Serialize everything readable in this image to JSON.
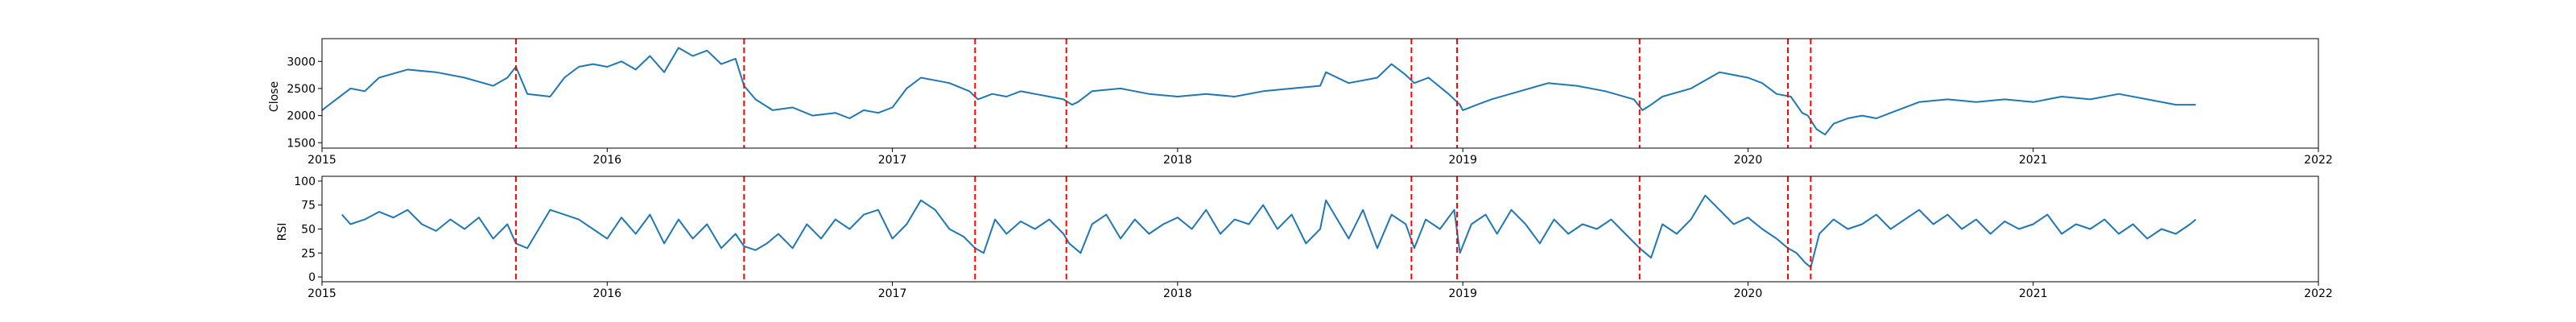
{
  "colors": {
    "line": "#1f77b4",
    "marker": "#ff0000",
    "axis": "#000000",
    "background": "#ffffff"
  },
  "chart_data": [
    {
      "type": "line",
      "ylabel": "Close",
      "xlim": [
        2015.0,
        2022.0
      ],
      "ylim": [
        1400,
        3420
      ],
      "x_ticks": [
        "2015",
        "2016",
        "2017",
        "2018",
        "2019",
        "2020",
        "2021",
        "2022"
      ],
      "y_ticks": [
        1500,
        2000,
        2500,
        3000
      ],
      "grid": false,
      "series": [
        {
          "x": [
            2015.0,
            2015.05,
            2015.1,
            2015.15,
            2015.2,
            2015.3,
            2015.4,
            2015.5,
            2015.6,
            2015.65,
            2015.68,
            2015.72,
            2015.8,
            2015.85,
            2015.9,
            2015.95,
            2016.0,
            2016.05,
            2016.1,
            2016.15,
            2016.2,
            2016.25,
            2016.3,
            2016.35,
            2016.4,
            2016.45,
            2016.48,
            2016.52,
            2016.58,
            2016.65,
            2016.72,
            2016.8,
            2016.85,
            2016.9,
            2016.95,
            2017.0,
            2017.05,
            2017.1,
            2017.15,
            2017.2,
            2017.27,
            2017.3,
            2017.35,
            2017.4,
            2017.45,
            2017.5,
            2017.55,
            2017.6,
            2017.63,
            2017.65,
            2017.7,
            2017.8,
            2017.9,
            2018.0,
            2018.1,
            2018.2,
            2018.3,
            2018.4,
            2018.5,
            2018.52,
            2018.6,
            2018.7,
            2018.75,
            2018.8,
            2018.83,
            2018.88,
            2018.95,
            2018.99,
            2019.0,
            2019.05,
            2019.1,
            2019.2,
            2019.3,
            2019.4,
            2019.5,
            2019.6,
            2019.63,
            2019.66,
            2019.7,
            2019.8,
            2019.9,
            2019.95,
            2020.0,
            2020.05,
            2020.1,
            2020.15,
            2020.19,
            2020.21,
            2020.24,
            2020.27,
            2020.3,
            2020.35,
            2020.4,
            2020.45,
            2020.5,
            2020.6,
            2020.7,
            2020.8,
            2020.9,
            2021.0,
            2021.1,
            2021.2,
            2021.3,
            2021.4,
            2021.5,
            2021.57
          ],
          "values": [
            2100,
            2300,
            2500,
            2450,
            2700,
            2850,
            2800,
            2700,
            2550,
            2700,
            2900,
            2400,
            2350,
            2700,
            2900,
            2950,
            2900,
            3000,
            2850,
            3100,
            2800,
            3250,
            3100,
            3200,
            2950,
            3050,
            2550,
            2300,
            2100,
            2150,
            2000,
            2050,
            1950,
            2100,
            2050,
            2150,
            2500,
            2700,
            2650,
            2600,
            2450,
            2300,
            2400,
            2350,
            2450,
            2400,
            2350,
            2300,
            2200,
            2250,
            2450,
            2500,
            2400,
            2350,
            2400,
            2350,
            2450,
            2500,
            2550,
            2800,
            2600,
            2700,
            2950,
            2750,
            2600,
            2700,
            2400,
            2200,
            2100,
            2200,
            2300,
            2450,
            2600,
            2550,
            2450,
            2300,
            2100,
            2200,
            2350,
            2500,
            2800,
            2750,
            2700,
            2600,
            2400,
            2350,
            2050,
            2000,
            1750,
            1650,
            1850,
            1950,
            2000,
            1950,
            2050,
            2250,
            2300,
            2250,
            2300,
            2250,
            2350,
            2300,
            2400,
            2300,
            2200,
            2200
          ]
        }
      ],
      "vlines": [
        2015.68,
        2016.48,
        2017.29,
        2017.61,
        2018.82,
        2018.98,
        2019.62,
        2020.14,
        2020.22
      ]
    },
    {
      "type": "line",
      "ylabel": "RSI",
      "xlim": [
        2015.0,
        2022.0
      ],
      "ylim": [
        -5,
        105
      ],
      "x_ticks": [
        "2015",
        "2016",
        "2017",
        "2018",
        "2019",
        "2020",
        "2021",
        "2022"
      ],
      "y_ticks": [
        0,
        25,
        50,
        75,
        100
      ],
      "grid": false,
      "series": [
        {
          "x": [
            2015.07,
            2015.1,
            2015.15,
            2015.2,
            2015.25,
            2015.3,
            2015.35,
            2015.4,
            2015.45,
            2015.5,
            2015.55,
            2015.6,
            2015.65,
            2015.68,
            2015.72,
            2015.75,
            2015.8,
            2015.85,
            2015.9,
            2015.95,
            2016.0,
            2016.05,
            2016.1,
            2016.15,
            2016.2,
            2016.25,
            2016.3,
            2016.35,
            2016.4,
            2016.45,
            2016.48,
            2016.52,
            2016.56,
            2016.6,
            2016.65,
            2016.7,
            2016.75,
            2016.8,
            2016.85,
            2016.9,
            2016.95,
            2017.0,
            2017.05,
            2017.1,
            2017.15,
            2017.2,
            2017.25,
            2017.29,
            2017.32,
            2017.36,
            2017.4,
            2017.45,
            2017.5,
            2017.55,
            2017.6,
            2017.62,
            2017.66,
            2017.7,
            2017.75,
            2017.8,
            2017.85,
            2017.9,
            2017.95,
            2018.0,
            2018.05,
            2018.1,
            2018.15,
            2018.2,
            2018.25,
            2018.3,
            2018.35,
            2018.4,
            2018.45,
            2018.5,
            2018.52,
            2018.56,
            2018.6,
            2018.65,
            2018.7,
            2018.75,
            2018.8,
            2018.83,
            2018.87,
            2018.92,
            2018.97,
            2018.99,
            2019.03,
            2019.08,
            2019.12,
            2019.17,
            2019.22,
            2019.27,
            2019.32,
            2019.37,
            2019.42,
            2019.47,
            2019.52,
            2019.57,
            2019.62,
            2019.66,
            2019.7,
            2019.75,
            2019.8,
            2019.85,
            2019.9,
            2019.95,
            2020.0,
            2020.05,
            2020.1,
            2020.14,
            2020.17,
            2020.2,
            2020.22,
            2020.25,
            2020.3,
            2020.35,
            2020.4,
            2020.45,
            2020.5,
            2020.55,
            2020.6,
            2020.65,
            2020.7,
            2020.75,
            2020.8,
            2020.85,
            2020.9,
            2020.95,
            2021.0,
            2021.05,
            2021.1,
            2021.15,
            2021.2,
            2021.25,
            2021.3,
            2021.35,
            2021.4,
            2021.45,
            2021.5,
            2021.55,
            2021.57
          ],
          "values": [
            65,
            55,
            60,
            68,
            62,
            70,
            55,
            48,
            60,
            50,
            62,
            40,
            55,
            35,
            30,
            45,
            70,
            65,
            60,
            50,
            40,
            62,
            45,
            65,
            35,
            60,
            40,
            55,
            30,
            45,
            32,
            28,
            35,
            45,
            30,
            55,
            40,
            60,
            50,
            65,
            70,
            40,
            55,
            80,
            70,
            50,
            42,
            30,
            25,
            60,
            45,
            58,
            50,
            60,
            45,
            35,
            25,
            55,
            65,
            40,
            60,
            45,
            55,
            62,
            50,
            70,
            45,
            60,
            55,
            75,
            50,
            65,
            35,
            50,
            80,
            60,
            40,
            70,
            30,
            65,
            55,
            30,
            60,
            50,
            70,
            25,
            55,
            65,
            45,
            70,
            55,
            35,
            60,
            45,
            55,
            50,
            60,
            45,
            30,
            20,
            55,
            45,
            60,
            85,
            70,
            55,
            62,
            50,
            40,
            30,
            25,
            15,
            10,
            45,
            60,
            50,
            55,
            65,
            50,
            60,
            70,
            55,
            65,
            50,
            60,
            45,
            58,
            50,
            55,
            65,
            45,
            55,
            50,
            60,
            45,
            55,
            40,
            50,
            45,
            55,
            60
          ]
        }
      ],
      "vlines": [
        2015.68,
        2016.48,
        2017.29,
        2017.61,
        2018.82,
        2018.98,
        2019.62,
        2020.14,
        2020.22
      ]
    }
  ]
}
